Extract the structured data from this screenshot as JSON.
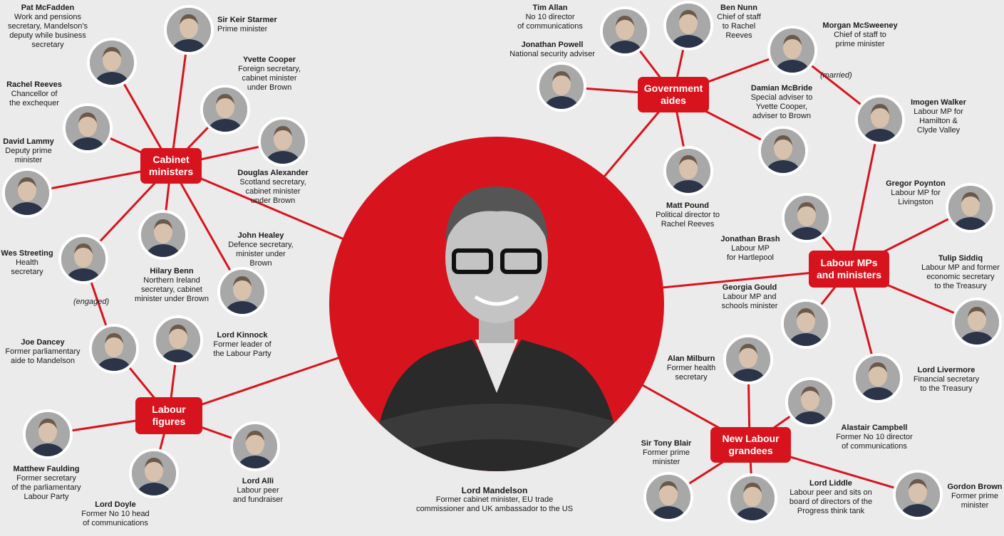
{
  "colors": {
    "accent": "#d7141e",
    "background": "#ebebeb"
  },
  "hubs": {
    "cabinet": "Cabinet\nministers",
    "aides": "Government\naides",
    "labour_mps": "Labour MPs\nand ministers",
    "labour_figures": "Labour\nfigures",
    "new_labour": "New Labour\ngrandees"
  },
  "center": {
    "name": "Lord Mandelson",
    "role": "Former cabinet minister, EU trade\ncommissioner and UK ambassador to the US"
  },
  "notes": {
    "engaged": "(engaged)",
    "married": "(married)"
  },
  "people": {
    "starmer": {
      "name": "Sir Keir Starmer",
      "role": "Prime minister"
    },
    "mcfadden": {
      "name": "Pat McFadden",
      "role": "Work and pensions\nsecretary, Mandelson's\ndeputy while business\nsecretary"
    },
    "cooper": {
      "name": "Yvette Cooper",
      "role": "Foreign secretary,\ncabinet minister\nunder Brown"
    },
    "reeves": {
      "name": "Rachel Reeves",
      "role": "Chancellor of\nthe exchequer"
    },
    "alexander": {
      "name": "Douglas Alexander",
      "role": "Scotland secretary,\ncabinet minister\nunder Brown"
    },
    "lammy": {
      "name": "David Lammy",
      "role": "Deputy prime\nminister"
    },
    "streeting": {
      "name": "Wes Streeting",
      "role": "Health\nsecretary"
    },
    "benn": {
      "name": "Hilary Benn",
      "role": "Northern Ireland\nsecretary, cabinet\nminister under Brown"
    },
    "healey": {
      "name": "John Healey",
      "role": "Defence secretary,\nminister under\nBrown"
    },
    "dancey": {
      "name": "Joe Dancey",
      "role": "Former parliamentary\naide to Mandelson"
    },
    "kinnock": {
      "name": "Lord Kinnock",
      "role": "Former leader of\nthe Labour Party"
    },
    "faulding": {
      "name": "Matthew Faulding",
      "role": "Former secretary\nof the parliamentary\nLabour Party"
    },
    "doyle": {
      "name": "Lord Doyle",
      "role": "Former No 10 head\nof communications"
    },
    "alli": {
      "name": "Lord Alli",
      "role": "Labour peer\nand fundraiser"
    },
    "allan": {
      "name": "Tim Allan",
      "role": "No 10 director\nof communications"
    },
    "nunn": {
      "name": "Ben Nunn",
      "role": "Chief of staff\nto Rachel\nReeves"
    },
    "powell": {
      "name": "Jonathan Powell",
      "role": "National security adviser"
    },
    "mcsweeney": {
      "name": "Morgan McSweeney",
      "role": "Chief of staff to\nprime minister"
    },
    "mcbride": {
      "name": "Damian McBride",
      "role": "Special adviser to\nYvette Cooper,\nadviser to Brown"
    },
    "pound": {
      "name": "Matt Pound",
      "role": "Political director to\nRachel Reeves"
    },
    "walker": {
      "name": "Imogen Walker",
      "role": "Labour MP for\nHamilton &\nClyde Valley"
    },
    "poynton": {
      "name": "Gregor Poynton",
      "role": "Labour MP for\nLivingston"
    },
    "brash": {
      "name": "Jonathan Brash",
      "role": "Labour MP\nfor Hartlepool"
    },
    "siddiq": {
      "name": "Tulip Siddiq",
      "role": "Labour MP and former\neconomic secretary\nto the Treasury"
    },
    "gould": {
      "name": "Georgia Gould",
      "role": "Labour MP and\nschools minister"
    },
    "livermore": {
      "name": "Lord Livermore",
      "role": "Financial secretary\nto the Treasury"
    },
    "milburn": {
      "name": "Alan Milburn",
      "role": "Former health\nsecretary"
    },
    "campbell": {
      "name": "Alastair Campbell",
      "role": "Former No 10 director\nof communications"
    },
    "blair": {
      "name": "Sir Tony Blair",
      "role": "Former prime\nminister"
    },
    "liddle": {
      "name": "Lord Liddle",
      "role": "Labour peer and sits on\nboard of directors of the\nProgress think tank"
    },
    "brown": {
      "name": "Gordon Brown",
      "role": "Former prime\nminister"
    }
  }
}
